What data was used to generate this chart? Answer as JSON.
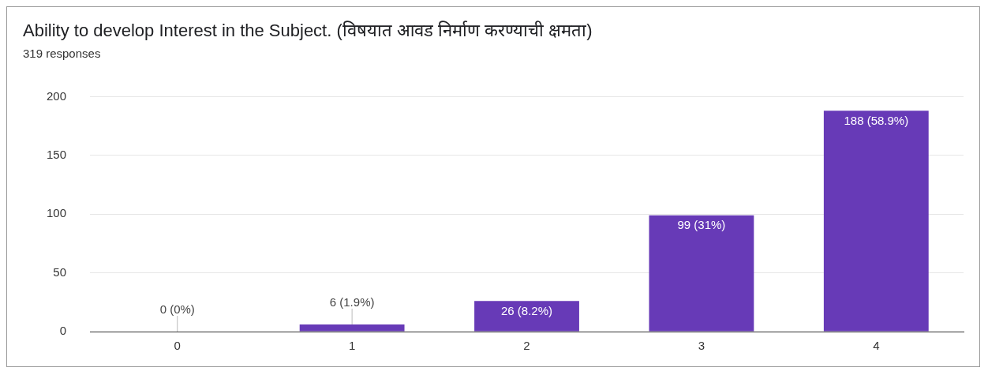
{
  "chart_data": {
    "type": "bar",
    "title": "Ability to develop Interest in the Subject. (विषयात आवड निर्माण करण्याची क्षमता)",
    "subtitle": "319 responses",
    "categories": [
      "0",
      "1",
      "2",
      "3",
      "4"
    ],
    "values": [
      0,
      6,
      26,
      99,
      188
    ],
    "value_labels": [
      "0 (0%)",
      "6 (1.9%)",
      "26 (8.2%)",
      "99 (31%)",
      "188 (58.9%)"
    ],
    "color": "#673ab7",
    "ylim": [
      0,
      200
    ],
    "yticks": [
      0,
      50,
      100,
      150,
      200
    ],
    "grid": "y",
    "legend": false
  }
}
